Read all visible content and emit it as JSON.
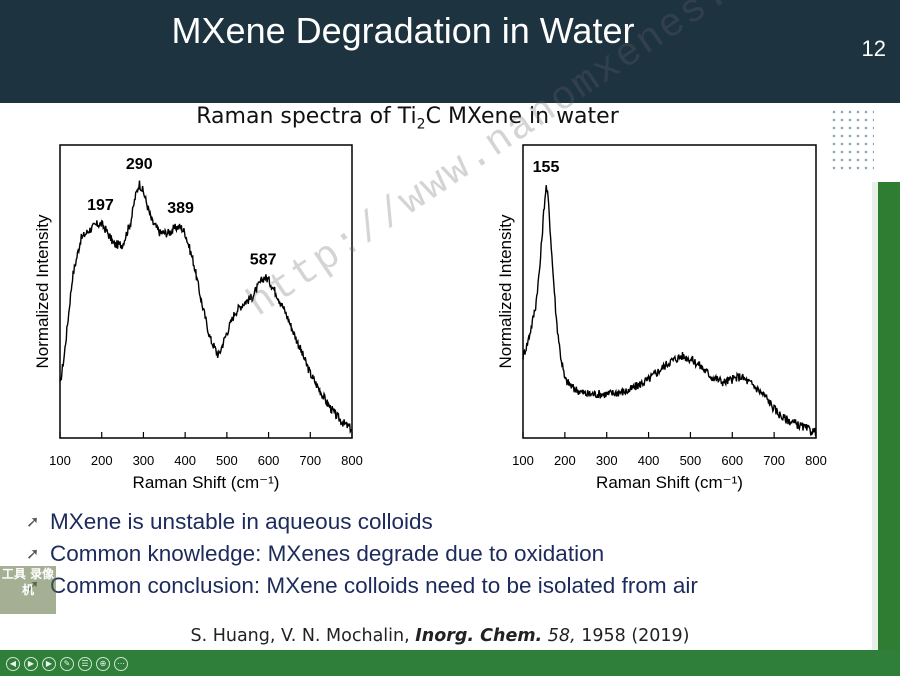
{
  "header": {
    "title": "MXene Degradation in Water",
    "slide_number": "12"
  },
  "figure": {
    "title_prefix": "Raman spectra of Ti",
    "title_sub": "2",
    "title_suffix": "C MXene in water"
  },
  "chart_data": [
    {
      "type": "line",
      "xlabel": "Raman Shift (cm⁻¹)",
      "ylabel": "Normalized Intensity",
      "xlim": [
        100,
        800
      ],
      "ylim": [
        0,
        1
      ],
      "xticks": [
        100,
        200,
        300,
        400,
        500,
        600,
        700,
        800
      ],
      "series": [
        {
          "x": [
            100,
            110,
            130,
            150,
            170,
            190,
            200,
            210,
            230,
            250,
            270,
            280,
            290,
            300,
            320,
            340,
            360,
            380,
            390,
            400,
            420,
            440,
            460,
            480,
            500,
            520,
            540,
            560,
            580,
            590,
            600,
            620,
            640,
            660,
            680,
            700,
            720,
            740,
            760,
            780,
            800
          ],
          "y": [
            0.18,
            0.28,
            0.55,
            0.68,
            0.71,
            0.73,
            0.73,
            0.71,
            0.66,
            0.66,
            0.74,
            0.82,
            0.87,
            0.84,
            0.74,
            0.7,
            0.7,
            0.72,
            0.72,
            0.7,
            0.6,
            0.46,
            0.34,
            0.28,
            0.36,
            0.43,
            0.46,
            0.48,
            0.53,
            0.55,
            0.54,
            0.49,
            0.43,
            0.36,
            0.29,
            0.22,
            0.17,
            0.12,
            0.08,
            0.05,
            0.03
          ]
        }
      ],
      "annotations": [
        {
          "x": 197,
          "label": "197"
        },
        {
          "x": 290,
          "label": "290"
        },
        {
          "x": 389,
          "label": "389"
        },
        {
          "x": 587,
          "label": "587"
        }
      ]
    },
    {
      "type": "line",
      "xlabel": "Raman Shift (cm⁻¹)",
      "ylabel": "Normalized Intensity",
      "xlim": [
        100,
        800
      ],
      "ylim": [
        0,
        1
      ],
      "xticks": [
        100,
        200,
        300,
        400,
        500,
        600,
        700,
        800
      ],
      "series": [
        {
          "x": [
            100,
            110,
            120,
            130,
            140,
            150,
            155,
            160,
            170,
            180,
            190,
            200,
            220,
            250,
            300,
            350,
            400,
            450,
            480,
            500,
            520,
            550,
            580,
            600,
            620,
            650,
            680,
            700,
            720,
            750,
            780,
            800
          ],
          "y": [
            0.28,
            0.32,
            0.38,
            0.45,
            0.58,
            0.78,
            0.86,
            0.82,
            0.6,
            0.4,
            0.28,
            0.2,
            0.17,
            0.15,
            0.15,
            0.16,
            0.2,
            0.26,
            0.28,
            0.27,
            0.25,
            0.21,
            0.19,
            0.2,
            0.21,
            0.18,
            0.14,
            0.1,
            0.07,
            0.05,
            0.03,
            0.02
          ]
        }
      ],
      "annotations": [
        {
          "x": 155,
          "label": "155"
        }
      ]
    }
  ],
  "bullets": [
    "MXene is unstable in aqueous colloids",
    "Common knowledge: MXenes degrade due to oxidation",
    "Common conclusion: MXene colloids need to be isolated from air"
  ],
  "citation": {
    "authors": "S. Huang, V. N. Mochalin,",
    "journal": "Inorg. Chem.",
    "volume": "58,",
    "rest": "1958 (2019)"
  },
  "watermark": "http://www.nanomxenes.com",
  "stamp_text": "工具 录像机",
  "colors": {
    "header_bg": "#1e3340",
    "stripe": "#2e7d32",
    "bullet_text": "#1c2a5c"
  },
  "player_controls": [
    "prev-icon",
    "play-icon",
    "next-icon",
    "pen-icon",
    "menu-icon",
    "zoom-icon",
    "more-icon"
  ]
}
